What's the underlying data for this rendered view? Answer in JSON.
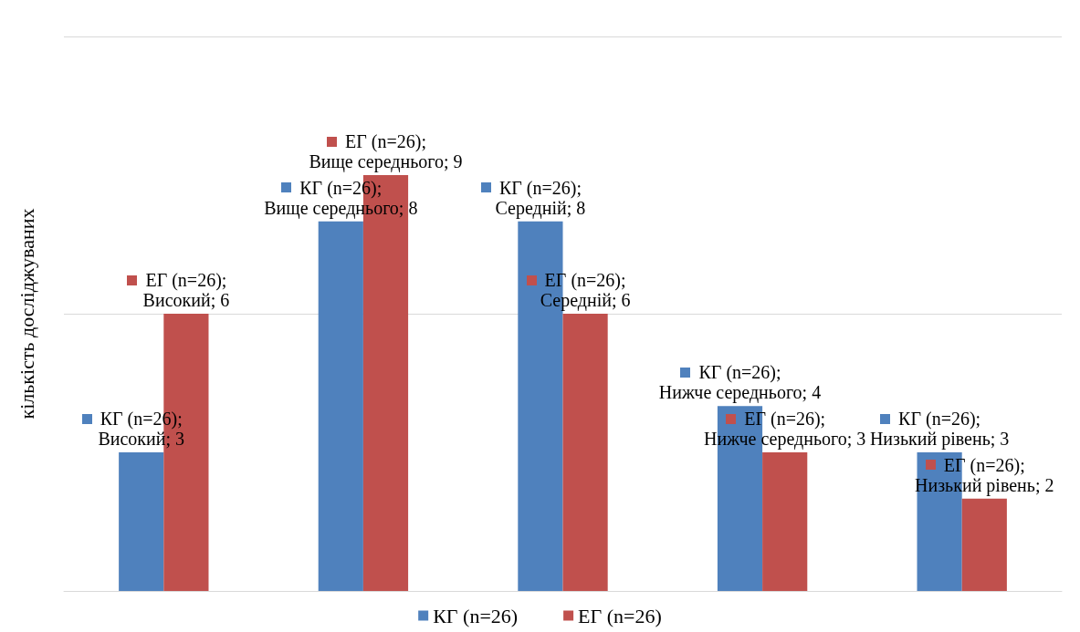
{
  "chart_data": {
    "type": "bar",
    "ylabel": "кількість досліджуваних",
    "categories": [
      null,
      null,
      null,
      null,
      null
    ],
    "series": [
      {
        "name": "КГ (n=26)",
        "color": "#4f81bd",
        "values": [
          3,
          8,
          8,
          4,
          3
        ],
        "value_labels": [
          "КГ (n=26); Високий; 3",
          "КГ (n=26); Вище середнього; 8",
          "КГ (n=26); Середній; 8",
          "КГ (n=26); Нижче середнього; 4",
          "КГ (n=26); Низький рівень; 3"
        ]
      },
      {
        "name": "ЕГ (n=26)",
        "color": "#c0504d",
        "values": [
          6,
          9,
          6,
          3,
          2
        ],
        "value_labels": [
          "ЕГ (n=26); Високий; 6",
          "ЕГ (n=26); Вище середнього; 9",
          "ЕГ (n=26); Середній; 6",
          "ЕГ (n=26); Нижче середнього; 3",
          "ЕГ (n=26); Низький рівень; 2"
        ]
      }
    ],
    "ylim": [
      0,
      12
    ],
    "yticks": [
      {
        "value": 0,
        "label": null
      },
      {
        "value": 6,
        "label": null
      },
      {
        "value": 12,
        "label": null
      }
    ],
    "grid": "y",
    "legend": "bottom"
  }
}
